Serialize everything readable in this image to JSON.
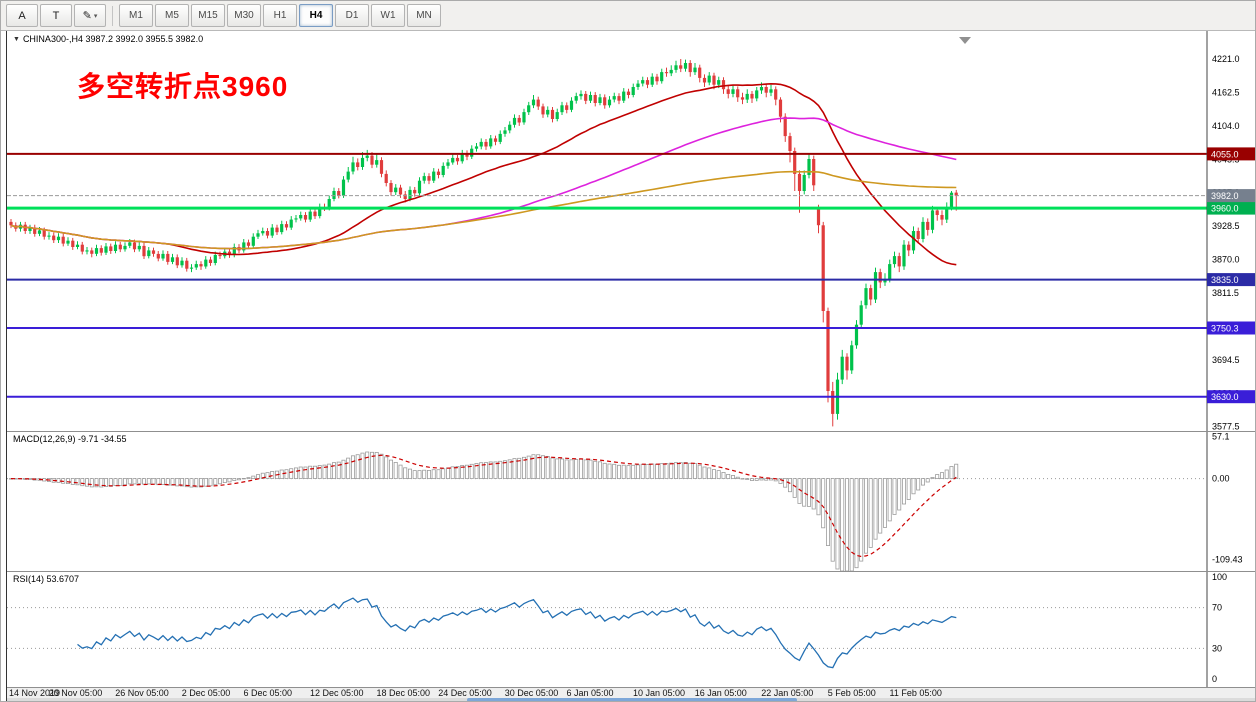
{
  "toolbar": {
    "tools": [
      {
        "name": "arrow-tool",
        "glyph": "A"
      },
      {
        "name": "text-tool",
        "glyph": "T"
      },
      {
        "name": "draw-tools",
        "glyph": "✎",
        "dropdown": "▾"
      }
    ],
    "timeframes": [
      {
        "label": "M1",
        "active": false
      },
      {
        "label": "M5",
        "active": false
      },
      {
        "label": "M15",
        "active": false
      },
      {
        "label": "M30",
        "active": false
      },
      {
        "label": "H1",
        "active": false
      },
      {
        "label": "H4",
        "active": true
      },
      {
        "label": "D1",
        "active": false
      },
      {
        "label": "W1",
        "active": false
      },
      {
        "label": "MN",
        "active": false
      }
    ]
  },
  "chart": {
    "title": "CHINA300-,H4 3987.2 3992.0 3955.5 3982.0",
    "annotation": "多空转折点3960",
    "annotation_color": "#FF0000",
    "price_axis_ticks": [
      "4221.0",
      "4162.5",
      "4104.0",
      "4045.5",
      "3987.0",
      "3928.5",
      "3870.0",
      "3811.5",
      "3753.0",
      "3694.5",
      "3636.0",
      "3577.5"
    ],
    "colors": {
      "up": "#00C24B",
      "down": "#E03C3C",
      "ma_fast": "#C00000",
      "ma_mid": "#DD22DD",
      "ma_slow": "#CE9820",
      "macd_hist": "#9c9c9c",
      "macd_signal": "#CC0000",
      "rsi": "#2470B3",
      "current_price_line": "#9a9a9a"
    }
  },
  "macd_panel": {
    "label": "MACD(12,26,9) -9.71 -34.55",
    "axis_labels": [
      "57.1",
      "0.00",
      "-109.43"
    ],
    "range": {
      "max": 63,
      "min": -125
    },
    "params": {
      "fast": 12,
      "slow": 26,
      "signal": 9
    }
  },
  "rsi_panel": {
    "label": "RSI(14) 53.6707",
    "axis_labels": [
      "100",
      "70",
      "30",
      "0"
    ],
    "period": 14,
    "levels": [
      70,
      30
    ]
  },
  "time_axis": [
    {
      "label": "14 Nov 2019",
      "bar": 0
    },
    {
      "label": "20 Nov 05:00",
      "bar": 13
    },
    {
      "label": "26 Nov 05:00",
      "bar": 27
    },
    {
      "label": "2 Dec 05:00",
      "bar": 41
    },
    {
      "label": "6 Dec 05:00",
      "bar": 54
    },
    {
      "label": "12 Dec 05:00",
      "bar": 68
    },
    {
      "label": "18 Dec 05:00",
      "bar": 82
    },
    {
      "label": "24 Dec 05:00",
      "bar": 95
    },
    {
      "label": "30 Dec 05:00",
      "bar": 109
    },
    {
      "label": "6 Jan 05:00",
      "bar": 122
    },
    {
      "label": "10 Jan 05:00",
      "bar": 136
    },
    {
      "label": "16 Jan 05:00",
      "bar": 149
    },
    {
      "label": "22 Jan 05:00",
      "bar": 163
    },
    {
      "label": "5 Feb 05:00",
      "bar": 177
    },
    {
      "label": "11 Feb 05:00",
      "bar": 190
    }
  ],
  "chart_data": {
    "type": "candlestick",
    "symbol": "CHINA300-",
    "period": "H4",
    "last_bar_ohlc": {
      "open": 3987.2,
      "high": 3992.0,
      "low": 3955.5,
      "close": 3982.0
    },
    "price_axis_range": {
      "max": 4270,
      "min": 3570
    },
    "horizontal_lines": [
      {
        "price": 4055.0,
        "label": "4055.0",
        "color": "#990000",
        "box": "#990000",
        "width": 2
      },
      {
        "price": 3960.0,
        "label": "3960.0",
        "color": "#00E05A",
        "box": "#00B050",
        "width": 3
      },
      {
        "price": 3835.0,
        "label": "3835.0",
        "color": "#2B2BA6",
        "box": "#2B2BA6",
        "width": 2
      },
      {
        "price": 3750.3,
        "label": "3750.3",
        "color": "#3A1ED8",
        "box": "#3A1ED8",
        "width": 2
      },
      {
        "price": 3630.0,
        "label": "3630.0",
        "color": "#3A1ED8",
        "box": "#3A1ED8",
        "width": 2
      }
    ],
    "current_price": {
      "value": 3982.0,
      "label": "3982.0",
      "box": "#76808E"
    },
    "moving_averages": [
      {
        "period": 34,
        "color": "#C00000"
      },
      {
        "period": 89,
        "color": "#DD22DD"
      },
      {
        "period": 200,
        "color": "#CE9820"
      }
    ],
    "candles": [
      [
        3936,
        3941,
        3925,
        3930
      ],
      [
        3930,
        3935,
        3919,
        3924
      ],
      [
        3924,
        3936,
        3919,
        3931
      ],
      [
        3931,
        3936,
        3915,
        3920
      ],
      [
        3920,
        3931,
        3915,
        3926
      ],
      [
        3926,
        3931,
        3910,
        3915
      ],
      [
        3915,
        3927,
        3911,
        3921
      ],
      [
        3921,
        3926,
        3905,
        3910
      ],
      [
        3910,
        3918,
        3905,
        3912
      ],
      [
        3912,
        3917,
        3899,
        3904
      ],
      [
        3904,
        3916,
        3899,
        3910
      ],
      [
        3910,
        3915,
        3893,
        3898
      ],
      [
        3898,
        3909,
        3894,
        3903
      ],
      [
        3903,
        3908,
        3887,
        3892
      ],
      [
        3892,
        3902,
        3888,
        3896
      ],
      [
        3896,
        3901,
        3879,
        3884
      ],
      [
        3884,
        3892,
        3879,
        3886
      ],
      [
        3886,
        3891,
        3874,
        3880
      ],
      [
        3880,
        3896,
        3876,
        3890
      ],
      [
        3890,
        3895,
        3877,
        3882
      ],
      [
        3882,
        3899,
        3878,
        3893
      ],
      [
        3893,
        3898,
        3880,
        3885
      ],
      [
        3885,
        3902,
        3881,
        3896
      ],
      [
        3896,
        3901,
        3883,
        3888
      ],
      [
        3888,
        3900,
        3884,
        3894
      ],
      [
        3894,
        3906,
        3890,
        3900
      ],
      [
        3900,
        3905,
        3883,
        3888
      ],
      [
        3888,
        3900,
        3884,
        3894
      ],
      [
        3894,
        3899,
        3871,
        3876
      ],
      [
        3876,
        3892,
        3872,
        3886
      ],
      [
        3886,
        3891,
        3875,
        3880
      ],
      [
        3880,
        3885,
        3867,
        3872
      ],
      [
        3872,
        3886,
        3868,
        3880
      ],
      [
        3880,
        3885,
        3861,
        3866
      ],
      [
        3866,
        3880,
        3862,
        3874
      ],
      [
        3874,
        3879,
        3855,
        3860
      ],
      [
        3860,
        3874,
        3856,
        3868
      ],
      [
        3868,
        3873,
        3849,
        3854
      ],
      [
        3854,
        3862,
        3848,
        3856
      ],
      [
        3856,
        3868,
        3852,
        3862
      ],
      [
        3862,
        3867,
        3852,
        3858
      ],
      [
        3858,
        3876,
        3854,
        3870
      ],
      [
        3870,
        3875,
        3859,
        3864
      ],
      [
        3864,
        3884,
        3860,
        3878
      ],
      [
        3878,
        3884,
        3871,
        3876
      ],
      [
        3876,
        3890,
        3872,
        3884
      ],
      [
        3884,
        3889,
        3873,
        3878
      ],
      [
        3878,
        3898,
        3874,
        3892
      ],
      [
        3892,
        3897,
        3881,
        3886
      ],
      [
        3886,
        3906,
        3882,
        3900
      ],
      [
        3900,
        3905,
        3889,
        3894
      ],
      [
        3894,
        3916,
        3890,
        3910
      ],
      [
        3910,
        3922,
        3906,
        3916
      ],
      [
        3916,
        3926,
        3912,
        3920
      ],
      [
        3920,
        3925,
        3907,
        3912
      ],
      [
        3912,
        3932,
        3908,
        3926
      ],
      [
        3926,
        3931,
        3913,
        3918
      ],
      [
        3918,
        3938,
        3914,
        3932
      ],
      [
        3932,
        3937,
        3921,
        3926
      ],
      [
        3926,
        3946,
        3922,
        3940
      ],
      [
        3940,
        3948,
        3935,
        3942
      ],
      [
        3942,
        3954,
        3938,
        3948
      ],
      [
        3948,
        3953,
        3935,
        3940
      ],
      [
        3940,
        3960,
        3936,
        3954
      ],
      [
        3954,
        3959,
        3941,
        3946
      ],
      [
        3946,
        3968,
        3942,
        3962
      ],
      [
        3962,
        3968,
        3955,
        3960
      ],
      [
        3960,
        3982,
        3956,
        3976
      ],
      [
        3976,
        3996,
        3972,
        3990
      ],
      [
        3990,
        3995,
        3977,
        3982
      ],
      [
        3982,
        4016,
        3978,
        4010
      ],
      [
        4010,
        4032,
        4005,
        4024
      ],
      [
        4024,
        4050,
        4019,
        4040
      ],
      [
        4040,
        4047,
        4026,
        4032
      ],
      [
        4032,
        4058,
        4027,
        4048
      ],
      [
        4048,
        4062,
        4042,
        4052
      ],
      [
        4052,
        4058,
        4030,
        4036
      ],
      [
        4036,
        4056,
        4031,
        4044
      ],
      [
        4044,
        4049,
        4014,
        4020
      ],
      [
        4020,
        4026,
        3998,
        4004
      ],
      [
        4004,
        4009,
        3982,
        3988
      ],
      [
        3988,
        4002,
        3983,
        3996
      ],
      [
        3996,
        4001,
        3978,
        3984
      ],
      [
        3984,
        3990,
        3970,
        3976
      ],
      [
        3976,
        3998,
        3972,
        3992
      ],
      [
        3992,
        3997,
        3980,
        3986
      ],
      [
        3986,
        4014,
        3982,
        4008
      ],
      [
        4008,
        4022,
        4003,
        4016
      ],
      [
        4016,
        4021,
        4002,
        4008
      ],
      [
        4008,
        4030,
        4004,
        4024
      ],
      [
        4024,
        4029,
        4012,
        4018
      ],
      [
        4018,
        4040,
        4014,
        4034
      ],
      [
        4034,
        4046,
        4029,
        4040
      ],
      [
        4040,
        4054,
        4036,
        4048
      ],
      [
        4048,
        4053,
        4036,
        4042
      ],
      [
        4042,
        4062,
        4038,
        4056
      ],
      [
        4056,
        4061,
        4044,
        4050
      ],
      [
        4050,
        4070,
        4046,
        4064
      ],
      [
        4064,
        4074,
        4059,
        4068
      ],
      [
        4068,
        4082,
        4063,
        4076
      ],
      [
        4076,
        4081,
        4062,
        4068
      ],
      [
        4068,
        4088,
        4064,
        4082
      ],
      [
        4082,
        4087,
        4070,
        4076
      ],
      [
        4076,
        4096,
        4072,
        4090
      ],
      [
        4090,
        4102,
        4085,
        4096
      ],
      [
        4096,
        4112,
        4091,
        4106
      ],
      [
        4106,
        4124,
        4101,
        4118
      ],
      [
        4118,
        4123,
        4104,
        4110
      ],
      [
        4110,
        4134,
        4106,
        4128
      ],
      [
        4128,
        4146,
        4123,
        4140
      ],
      [
        4140,
        4158,
        4135,
        4150
      ],
      [
        4150,
        4155,
        4132,
        4138
      ],
      [
        4138,
        4143,
        4118,
        4124
      ],
      [
        4124,
        4138,
        4119,
        4132
      ],
      [
        4132,
        4137,
        4110,
        4116
      ],
      [
        4116,
        4134,
        4112,
        4128
      ],
      [
        4128,
        4146,
        4123,
        4140
      ],
      [
        4140,
        4145,
        4126,
        4132
      ],
      [
        4132,
        4154,
        4128,
        4148
      ],
      [
        4148,
        4162,
        4143,
        4156
      ],
      [
        4156,
        4166,
        4150,
        4160
      ],
      [
        4160,
        4165,
        4142,
        4148
      ],
      [
        4148,
        4164,
        4144,
        4158
      ],
      [
        4158,
        4163,
        4138,
        4144
      ],
      [
        4144,
        4160,
        4140,
        4154
      ],
      [
        4154,
        4159,
        4134,
        4140
      ],
      [
        4140,
        4156,
        4136,
        4150
      ],
      [
        4150,
        4162,
        4145,
        4156
      ],
      [
        4156,
        4161,
        4142,
        4148
      ],
      [
        4148,
        4170,
        4144,
        4164
      ],
      [
        4164,
        4169,
        4152,
        4158
      ],
      [
        4158,
        4178,
        4154,
        4172
      ],
      [
        4172,
        4184,
        4167,
        4178
      ],
      [
        4178,
        4190,
        4173,
        4184
      ],
      [
        4184,
        4189,
        4170,
        4176
      ],
      [
        4176,
        4196,
        4172,
        4190
      ],
      [
        4190,
        4195,
        4176,
        4182
      ],
      [
        4182,
        4204,
        4178,
        4198
      ],
      [
        4198,
        4206,
        4190,
        4196
      ],
      [
        4196,
        4210,
        4191,
        4202
      ],
      [
        4202,
        4218,
        4197,
        4210
      ],
      [
        4210,
        4221,
        4198,
        4204
      ],
      [
        4204,
        4220,
        4199,
        4214
      ],
      [
        4214,
        4219,
        4190,
        4198
      ],
      [
        4198,
        4214,
        4193,
        4206
      ],
      [
        4206,
        4211,
        4180,
        4188
      ],
      [
        4188,
        4194,
        4172,
        4180
      ],
      [
        4180,
        4198,
        4175,
        4192
      ],
      [
        4192,
        4197,
        4168,
        4176
      ],
      [
        4176,
        4190,
        4170,
        4184
      ],
      [
        4184,
        4189,
        4160,
        4168
      ],
      [
        4168,
        4174,
        4152,
        4160
      ],
      [
        4160,
        4176,
        4154,
        4168
      ],
      [
        4168,
        4173,
        4146,
        4154
      ],
      [
        4154,
        4162,
        4142,
        4150
      ],
      [
        4150,
        4168,
        4144,
        4160
      ],
      [
        4160,
        4165,
        4144,
        4152
      ],
      [
        4152,
        4172,
        4147,
        4166
      ],
      [
        4166,
        4180,
        4160,
        4172
      ],
      [
        4172,
        4177,
        4154,
        4162
      ],
      [
        4162,
        4176,
        4156,
        4168
      ],
      [
        4168,
        4173,
        4140,
        4150
      ],
      [
        4150,
        4154,
        4110,
        4120
      ],
      [
        4120,
        4126,
        4076,
        4086
      ],
      [
        4086,
        4092,
        4040,
        4060
      ],
      [
        4060,
        4066,
        3990,
        4020
      ],
      [
        4020,
        4026,
        3952,
        3990
      ],
      [
        3990,
        4026,
        3984,
        4018
      ],
      [
        4018,
        4056,
        4012,
        4046
      ],
      [
        4046,
        4052,
        3990,
        4000
      ],
      [
        3960,
        3966,
        3916,
        3930
      ],
      [
        3930,
        3936,
        3760,
        3780
      ],
      [
        3780,
        3786,
        3620,
        3640
      ],
      [
        3640,
        3656,
        3578,
        3600
      ],
      [
        3600,
        3672,
        3590,
        3660
      ],
      [
        3660,
        3712,
        3652,
        3700
      ],
      [
        3700,
        3706,
        3660,
        3676
      ],
      [
        3676,
        3728,
        3670,
        3720
      ],
      [
        3720,
        3764,
        3714,
        3756
      ],
      [
        3756,
        3798,
        3750,
        3790
      ],
      [
        3790,
        3828,
        3784,
        3820
      ],
      [
        3820,
        3826,
        3790,
        3800
      ],
      [
        3800,
        3856,
        3794,
        3848
      ],
      [
        3848,
        3854,
        3820,
        3830
      ],
      [
        3830,
        3846,
        3824,
        3836
      ],
      [
        3836,
        3870,
        3830,
        3862
      ],
      [
        3862,
        3884,
        3856,
        3876
      ],
      [
        3876,
        3882,
        3848,
        3858
      ],
      [
        3858,
        3904,
        3852,
        3896
      ],
      [
        3896,
        3902,
        3876,
        3886
      ],
      [
        3886,
        3928,
        3880,
        3920
      ],
      [
        3920,
        3926,
        3898,
        3906
      ],
      [
        3906,
        3944,
        3900,
        3936
      ],
      [
        3936,
        3942,
        3912,
        3922
      ],
      [
        3922,
        3964,
        3916,
        3956
      ],
      [
        3956,
        3962,
        3938,
        3948
      ],
      [
        3948,
        3956,
        3930,
        3940
      ],
      [
        3940,
        3970,
        3934,
        3962
      ],
      [
        3962,
        3990,
        3956,
        3987
      ],
      [
        3987.2,
        3992,
        3955.5,
        3982
      ]
    ]
  }
}
